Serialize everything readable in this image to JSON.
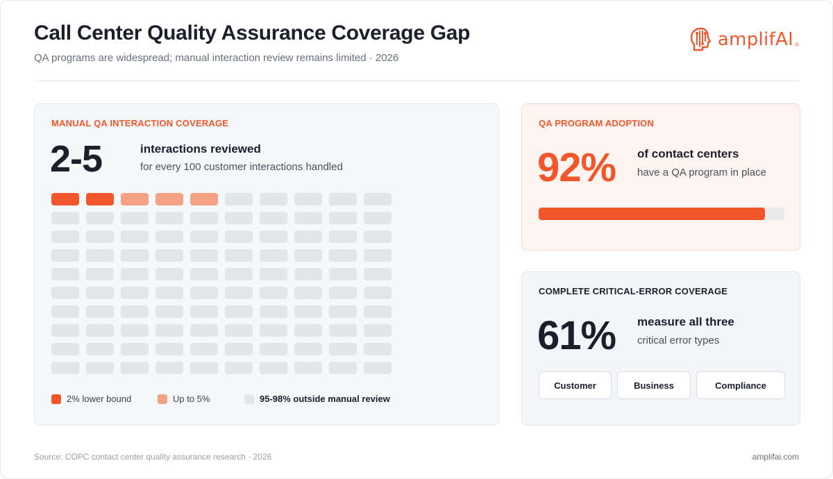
{
  "header": {
    "title": "Call Center Quality Assurance Coverage Gap",
    "subtitle": "QA programs are widespread; manual interaction review remains limited · 2026",
    "logo_text": "amplifAI",
    "logo_mark": "®"
  },
  "manual_coverage": {
    "label": "MANUAL QA INTERACTION COVERAGE",
    "range": "2-5",
    "headline": "interactions reviewed",
    "detail": "for every 100 customer interactions handled",
    "legend": [
      {
        "label": "2% lower bound",
        "color": "#f2572b"
      },
      {
        "label": "Up to 5%",
        "color": "#f4a285"
      },
      {
        "label": "95-98% outside manual review",
        "color": "#e4e5e8"
      }
    ]
  },
  "adoption": {
    "label": "QA PROGRAM ADOPTION",
    "value_text": "92%",
    "headline": "of contact centers",
    "detail": "have a QA program in place",
    "progress": 0.92
  },
  "critical_error": {
    "label": "COMPLETE CRITICAL-ERROR COVERAGE",
    "value_text": "61%",
    "headline": "measure all three",
    "detail": "critical error types",
    "types": [
      "Customer",
      "Business",
      "Compliance"
    ]
  },
  "chart_data": {
    "type": "waffle",
    "total": 100,
    "rows": 10,
    "columns": 10,
    "series": [
      {
        "name": "2% lower bound",
        "value": 2,
        "color": "#f2572b"
      },
      {
        "name": "Up to 5%",
        "value": 3,
        "color": "#f4a285"
      },
      {
        "name": "95-98% outside manual review",
        "value": 95,
        "color": "#e4e5e8"
      }
    ]
  },
  "footer": {
    "source": "Source: COPC contact center quality assurance research · 2026",
    "site": "amplifai.com"
  },
  "colors": {
    "accent": "#f2572b",
    "accent_light": "#f4a285",
    "neutral_cell": "#e4e5e8"
  }
}
